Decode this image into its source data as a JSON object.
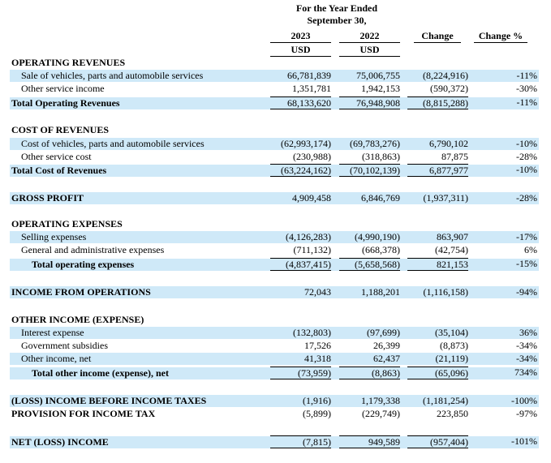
{
  "header": {
    "period": "For the Year Ended",
    "date": "September 30,",
    "columns": [
      "2023",
      "2022",
      "Change",
      "Change %"
    ],
    "units": [
      "USD",
      "USD"
    ]
  },
  "rows": [
    {
      "label": "OPERATING REVENUES"
    },
    {
      "label": "Sale of vehicles, parts and automobile services",
      "values": [
        "66,781,839",
        "75,006,755",
        "(8,224,916)",
        "-11%"
      ]
    },
    {
      "label": "Other service income",
      "values": [
        "1,351,781",
        "1,942,153",
        "(590,372)",
        "-30%"
      ]
    },
    {
      "label": "Total Operating Revenues",
      "values": [
        "68,133,620",
        "76,948,908",
        "(8,815,288)",
        "-11%"
      ]
    },
    {
      "label": "COST OF REVENUES"
    },
    {
      "label": "Cost of vehicles, parts and automobile services",
      "values": [
        "(62,993,174)",
        "(69,783,276)",
        "6,790,102",
        "-10%"
      ]
    },
    {
      "label": "Other service cost",
      "values": [
        "(230,988)",
        "(318,863)",
        "87,875",
        "-28%"
      ]
    },
    {
      "label": "Total Cost of Revenues",
      "values": [
        "(63,224,162)",
        "(70,102,139)",
        "6,877,977",
        "-10%"
      ]
    },
    {
      "label": "GROSS PROFIT",
      "values": [
        "4,909,458",
        "6,846,769",
        "(1,937,311)",
        "-28%"
      ]
    },
    {
      "label": "OPERATING EXPENSES"
    },
    {
      "label": "Selling expenses",
      "values": [
        "(4,126,283)",
        "(4,990,190)",
        "863,907",
        "-17%"
      ]
    },
    {
      "label": "General and administrative expenses",
      "values": [
        "(711,132)",
        "(668,378)",
        "(42,754)",
        "6%"
      ]
    },
    {
      "label": "Total operating expenses",
      "values": [
        "(4,837,415)",
        "(5,658,568)",
        "821,153",
        "-15%"
      ]
    },
    {
      "label": "INCOME FROM OPERATIONS",
      "values": [
        "72,043",
        "1,188,201",
        "(1,116,158)",
        "-94%"
      ]
    },
    {
      "label": "OTHER INCOME (EXPENSE)"
    },
    {
      "label": "Interest expense",
      "values": [
        "(132,803)",
        "(97,699)",
        "(35,104)",
        "36%"
      ]
    },
    {
      "label": "Government subsidies",
      "values": [
        "17,526",
        "26,399",
        "(8,873)",
        "-34%"
      ]
    },
    {
      "label": "Other income, net",
      "values": [
        "41,318",
        "62,437",
        "(21,119)",
        "-34%"
      ]
    },
    {
      "label": "Total other income (expense), net",
      "values": [
        "(73,959)",
        "(8,863)",
        "(65,096)",
        "734%"
      ]
    },
    {
      "label": "(LOSS) INCOME BEFORE INCOME TAXES",
      "values": [
        "(1,916)",
        "1,179,338",
        "(1,181,254)",
        "-100%"
      ]
    },
    {
      "label": "PROVISION FOR INCOME TAX",
      "values": [
        "(5,899)",
        "(229,749)",
        "223,850",
        "-97%"
      ]
    },
    {
      "label": "NET (LOSS) INCOME",
      "values": [
        "(7,815)",
        "949,589",
        "(957,404)",
        "-101%"
      ]
    }
  ]
}
